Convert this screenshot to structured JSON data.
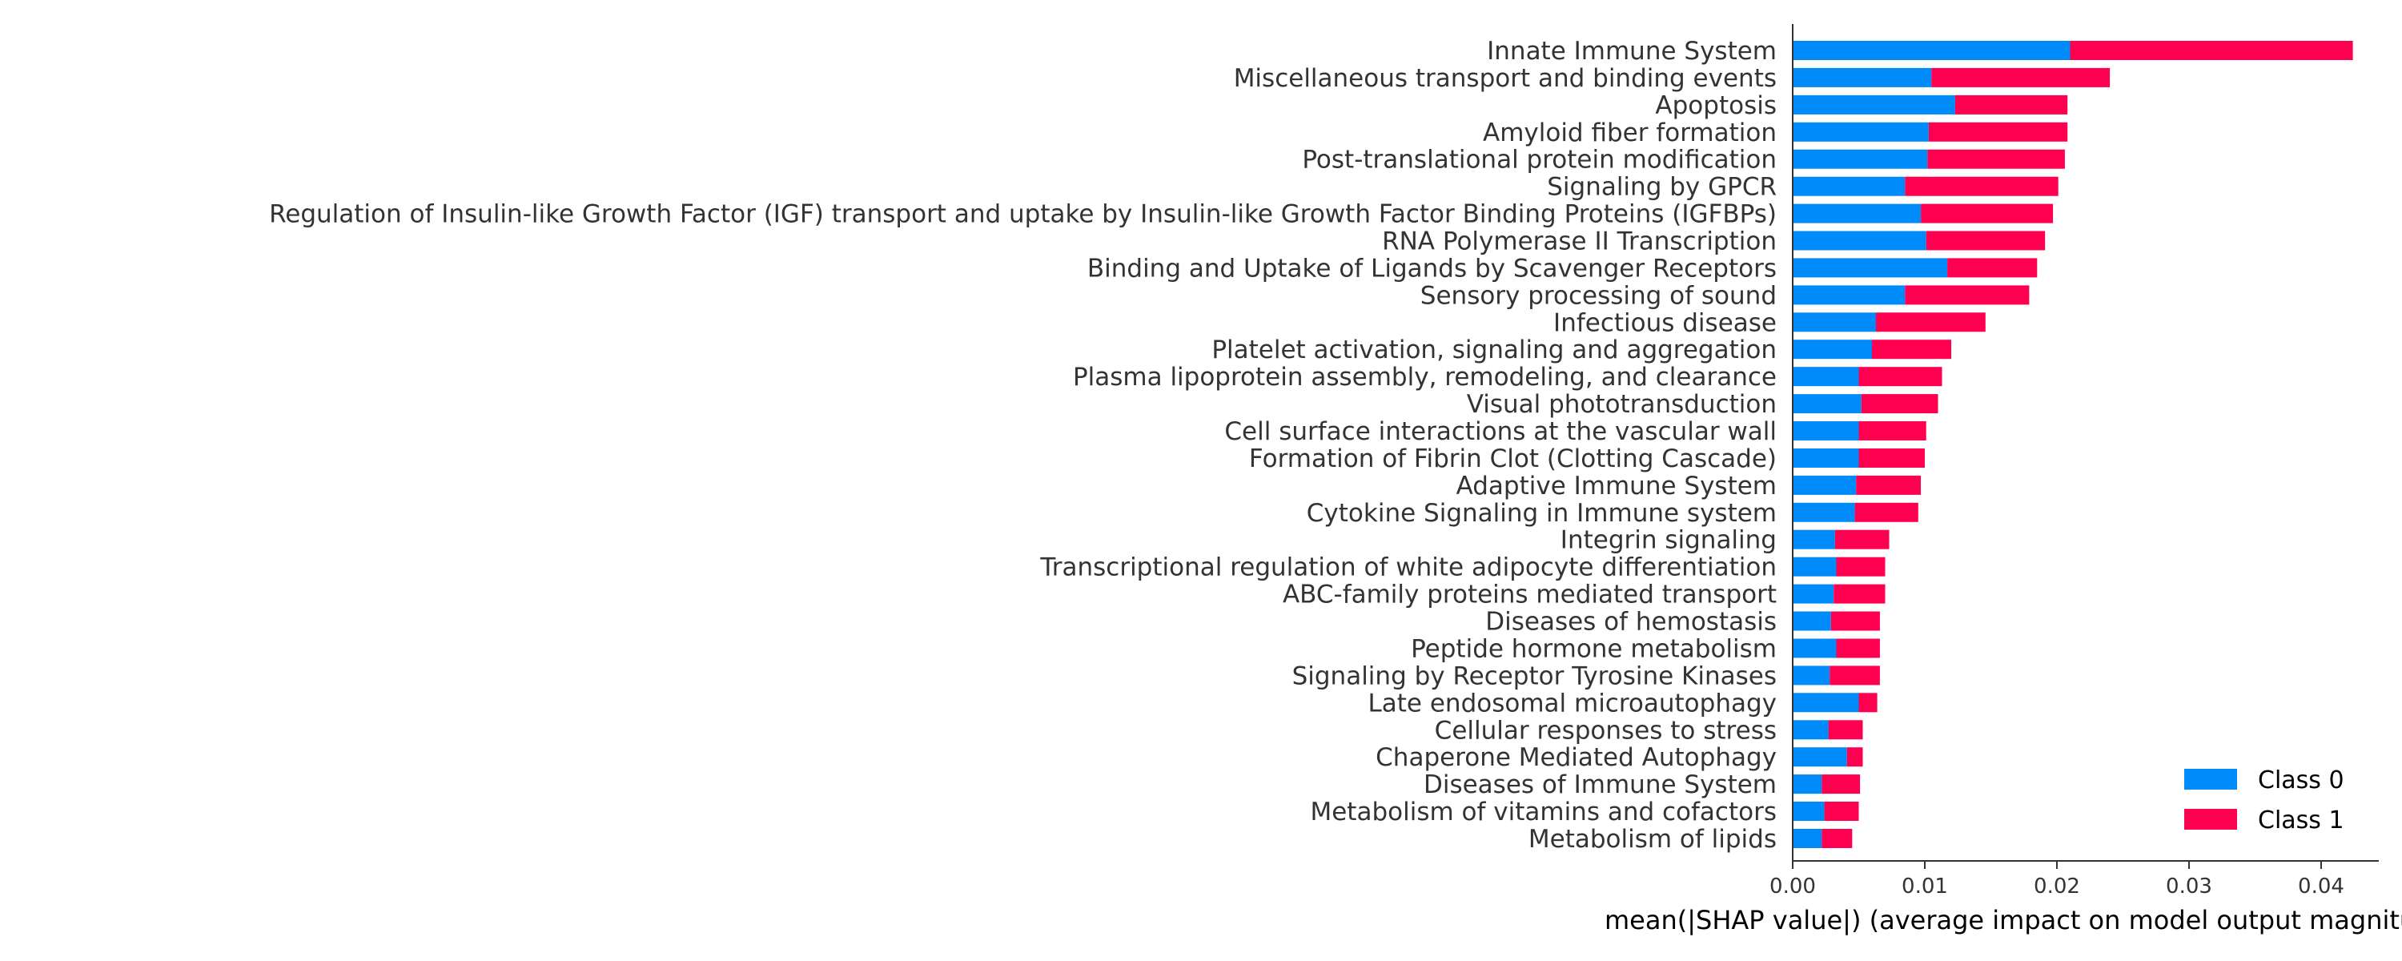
{
  "chart_data": {
    "type": "bar",
    "stacked": true,
    "orientation": "horizontal",
    "title": "",
    "xlabel": "mean(|SHAP value|) (average impact on model output magnitude)",
    "ylabel": "",
    "xlim": [
      0.0,
      0.0445
    ],
    "xticks": [
      0.0,
      0.01,
      0.02,
      0.03,
      0.04
    ],
    "xtick_labels": [
      "0.00",
      "0.01",
      "0.02",
      "0.03",
      "0.04"
    ],
    "grid": false,
    "legend_position": "lower-right",
    "categories": [
      "Innate Immune System",
      "Miscellaneous transport and binding events",
      "Apoptosis",
      "Amyloid fiber formation",
      "Post-translational protein modification",
      "Signaling by GPCR",
      "Regulation of Insulin-like Growth Factor (IGF) transport and uptake by Insulin-like Growth Factor Binding Proteins (IGFBPs)",
      "RNA Polymerase II Transcription",
      "Binding and Uptake of Ligands by Scavenger Receptors",
      "Sensory processing of sound",
      "Infectious disease",
      "Platelet activation, signaling and aggregation",
      "Plasma lipoprotein assembly, remodeling, and clearance",
      "Visual phototransduction",
      "Cell surface interactions at the vascular wall",
      "Formation of Fibrin Clot (Clotting Cascade)",
      "Adaptive Immune System",
      "Cytokine Signaling in Immune system",
      "Integrin signaling",
      "Transcriptional regulation of white adipocyte differentiation",
      "ABC-family proteins mediated transport",
      "Diseases of hemostasis",
      "Peptide hormone metabolism",
      "Signaling by Receptor Tyrosine Kinases",
      "Late endosomal microautophagy",
      "Cellular responses to stress",
      "Chaperone Mediated Autophagy",
      "Diseases of Immune System",
      "Metabolism of vitamins and cofactors",
      "Metabolism of lipids"
    ],
    "series": [
      {
        "name": "Class 0",
        "color": "#008bfb",
        "values": [
          0.021,
          0.0105,
          0.0123,
          0.0103,
          0.0102,
          0.0085,
          0.0097,
          0.0101,
          0.0117,
          0.0085,
          0.0063,
          0.006,
          0.005,
          0.0052,
          0.005,
          0.005,
          0.0048,
          0.0047,
          0.0032,
          0.0033,
          0.0031,
          0.0029,
          0.0033,
          0.0028,
          0.005,
          0.0027,
          0.0041,
          0.0022,
          0.0024,
          0.0022
        ]
      },
      {
        "name": "Class 1",
        "color": "#ff0051",
        "values": [
          0.0214,
          0.0135,
          0.0085,
          0.0105,
          0.0104,
          0.0116,
          0.01,
          0.009,
          0.0068,
          0.0094,
          0.0083,
          0.006,
          0.0063,
          0.0058,
          0.0051,
          0.005,
          0.0049,
          0.0048,
          0.0041,
          0.0037,
          0.0039,
          0.0037,
          0.0033,
          0.0038,
          0.0014,
          0.0026,
          0.0012,
          0.0029,
          0.0026,
          0.0023
        ]
      }
    ]
  }
}
